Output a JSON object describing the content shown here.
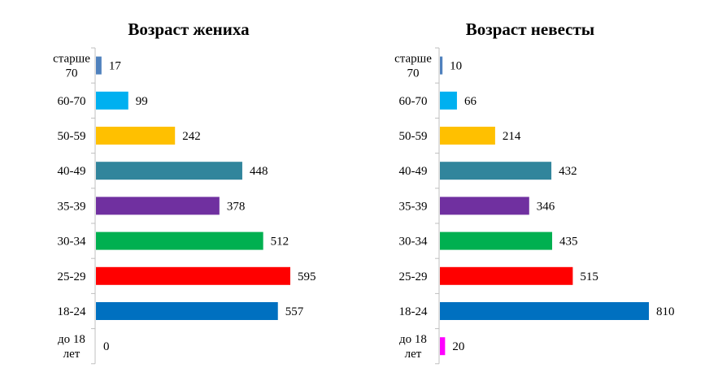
{
  "chart_data": [
    {
      "type": "bar",
      "orientation": "horizontal",
      "title": "Возраст жениха",
      "categories": [
        "старше 70",
        "60-70",
        "50-59",
        "40-49",
        "35-39",
        "30-34",
        "25-29",
        "18-24",
        "до 18 лет"
      ],
      "category_lines": [
        [
          "старше",
          "70"
        ],
        [
          "60-70"
        ],
        [
          "50-59"
        ],
        [
          "40-49"
        ],
        [
          "35-39"
        ],
        [
          "30-34"
        ],
        [
          "25-29"
        ],
        [
          "18-24"
        ],
        [
          "до 18",
          "лет"
        ]
      ],
      "values": [
        17,
        99,
        242,
        448,
        378,
        512,
        595,
        557,
        0
      ],
      "colors": [
        "#4f81bd",
        "#00b0f0",
        "#ffc000",
        "#31859c",
        "#7030a0",
        "#00b050",
        "#ff0000",
        "#0070c0",
        "#ff00ff"
      ],
      "xlim": [
        0,
        595
      ],
      "grid": false,
      "legend": "none"
    },
    {
      "type": "bar",
      "orientation": "horizontal",
      "title": "Возраст невесты",
      "categories": [
        "старше 70",
        "60-70",
        "50-59",
        "40-49",
        "35-39",
        "30-34",
        "25-29",
        "18-24",
        "до 18 лет"
      ],
      "category_lines": [
        [
          "старше",
          "70"
        ],
        [
          "60-70"
        ],
        [
          "50-59"
        ],
        [
          "40-49"
        ],
        [
          "35-39"
        ],
        [
          "30-34"
        ],
        [
          "25-29"
        ],
        [
          "18-24"
        ],
        [
          "до 18",
          "лет"
        ]
      ],
      "values": [
        10,
        66,
        214,
        432,
        346,
        435,
        515,
        810,
        20
      ],
      "colors": [
        "#4f81bd",
        "#00b0f0",
        "#ffc000",
        "#31859c",
        "#7030a0",
        "#00b050",
        "#ff0000",
        "#0070c0",
        "#ff00ff"
      ],
      "xlim": [
        0,
        810
      ],
      "grid": false,
      "legend": "none"
    }
  ]
}
